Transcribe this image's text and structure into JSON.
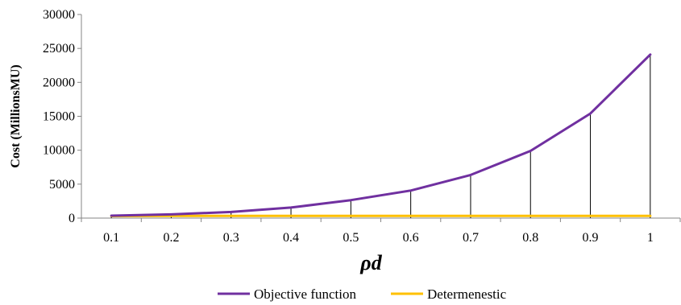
{
  "chart_data": {
    "type": "line",
    "xlabel": "ρd",
    "ylabel": "Cost (MillionsMU)",
    "x": [
      "0.1",
      "0.2",
      "0.3",
      "0.4",
      "0.5",
      "0.6",
      "0.7",
      "0.8",
      "0.9",
      "1"
    ],
    "ylim": [
      0,
      30000
    ],
    "yticks": [
      0,
      5000,
      10000,
      15000,
      20000,
      25000,
      30000
    ],
    "grid": false,
    "drop_lines": true,
    "legend_position": "bottom",
    "series": [
      {
        "name": "Objective function",
        "color": "#7030a0",
        "values": [
          350,
          550,
          900,
          1550,
          2650,
          4050,
          6350,
          9900,
          15400,
          24100
        ]
      },
      {
        "name": "Determenestic",
        "color": "#ffc000",
        "values": [
          300,
          320,
          330,
          330,
          330,
          330,
          330,
          330,
          330,
          330
        ]
      }
    ]
  }
}
